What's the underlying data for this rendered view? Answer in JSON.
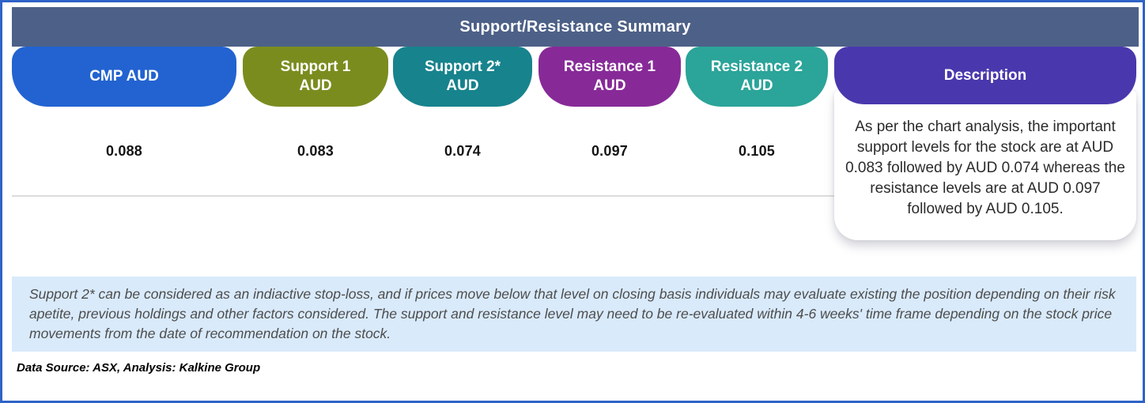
{
  "colors": {
    "border": "#2e63c7",
    "header_bar": "#4d6188",
    "note_bg": "#d9eafb"
  },
  "table": {
    "title": "Support/Resistance Summary",
    "columns": [
      {
        "line1": "CMP AUD",
        "line2": "",
        "color": "#2263d1",
        "value": "0.088"
      },
      {
        "line1": "Support 1",
        "line2": "AUD",
        "color": "#7b8c1f",
        "value": "0.083"
      },
      {
        "line1": "Support 2*",
        "line2": "AUD",
        "color": "#17838d",
        "value": "0.074"
      },
      {
        "line1": "Resistance 1",
        "line2": "AUD",
        "color": "#872a98",
        "value": "0.097"
      },
      {
        "line1": "Resistance 2",
        "line2": "AUD",
        "color": "#2ba499",
        "value": "0.105"
      },
      {
        "line1": "Description",
        "line2": "",
        "color": "#4938ad",
        "value": ""
      }
    ],
    "description": "As per the chart analysis, the important support levels for the stock are at AUD 0.083 followed by AUD 0.074 whereas the resistance levels are at AUD 0.097 followed by AUD 0.105."
  },
  "note": "Support 2* can be considered as an indiactive stop-loss, and if prices move below that level on closing basis individuals may evaluate existing the position depending on their risk apetite, previous holdings and other factors considered. The support and resistance level may need to be re-evaluated within 4-6 weeks' time frame depending on the stock price movements from  the date of recommendation on the stock.",
  "source": "Data Source: ASX, Analysis: Kalkine Group"
}
